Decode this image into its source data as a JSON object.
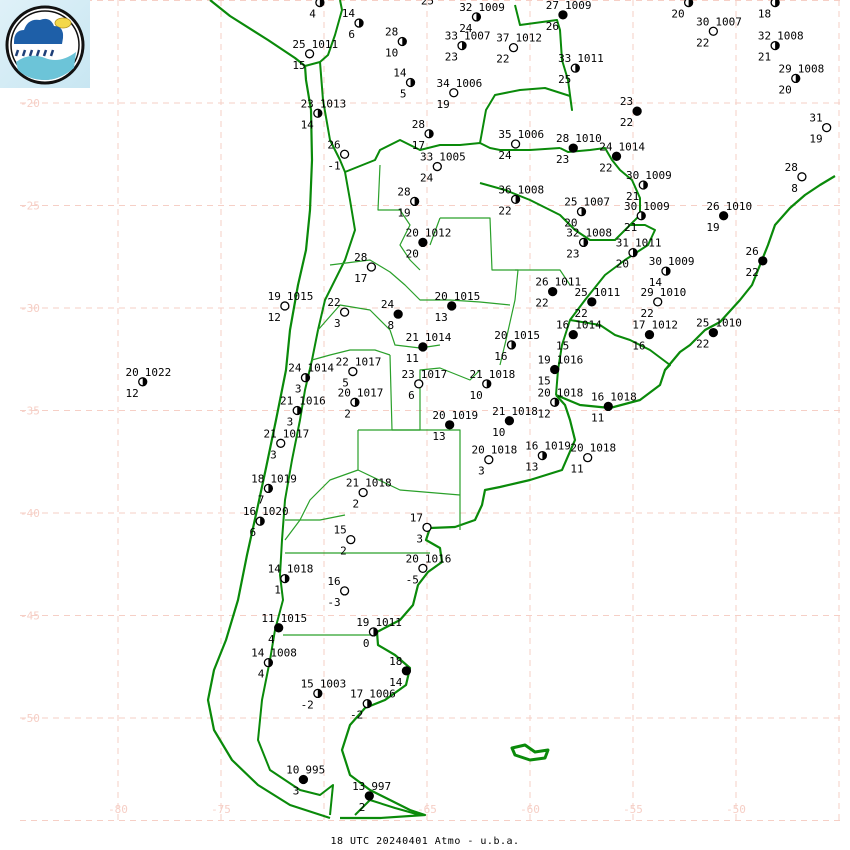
{
  "caption": "18 UTC  20240401 Atmo - u.b.a.",
  "logo": {
    "name": "Atmo UBA weather logo"
  },
  "colors": {
    "coast": "#0a8a0a",
    "borders": "#2aa02a",
    "grid": "#f6cfc6",
    "station": "#000000"
  },
  "grid": {
    "lat_labels": [
      "-20",
      "-25",
      "-30",
      "-35",
      "-40",
      "-45",
      "-50"
    ],
    "lat_values": [
      -20,
      -25,
      -30,
      -35,
      -40,
      -45,
      -50
    ],
    "lon_labels": [
      "-80",
      "-75",
      "-65",
      "-60",
      "-55",
      "-50"
    ],
    "lon_values": [
      -80,
      -75,
      -65,
      -60,
      -55,
      -50
    ]
  },
  "stations": [
    {
      "lon": -70.2,
      "lat": -15.1,
      "t": "17",
      "td": "4",
      "p": "",
      "cover": 0.5
    },
    {
      "lon": -68.3,
      "lat": -16.1,
      "t": "14",
      "td": "6",
      "p": "",
      "cover": 0.5
    },
    {
      "lon": -66.2,
      "lat": -17.0,
      "t": "28",
      "td": "10",
      "p": "",
      "cover": 0.5
    },
    {
      "lon": -65.8,
      "lat": -19.0,
      "t": "14",
      "td": "5",
      "p": "",
      "cover": 0.5
    },
    {
      "lon": -70.7,
      "lat": -17.6,
      "t": "25",
      "td": "15",
      "p": "1011",
      "cover": 0
    },
    {
      "lon": -70.3,
      "lat": -20.5,
      "t": "23",
      "td": "14",
      "p": "1013",
      "cover": 0.5
    },
    {
      "lon": -69.0,
      "lat": -22.5,
      "t": "26",
      "td": "-1",
      "p": "",
      "cover": 0
    },
    {
      "lon": -62.6,
      "lat": -15.8,
      "t": "32",
      "td": "24",
      "p": "1009",
      "cover": 0.5
    },
    {
      "lon": -63.3,
      "lat": -17.2,
      "t": "33",
      "td": "23",
      "p": "1007",
      "cover": 0.5
    },
    {
      "lon": -60.8,
      "lat": -17.3,
      "t": "37",
      "td": "22",
      "p": "1012",
      "cover": 0
    },
    {
      "lon": -58.4,
      "lat": -15.7,
      "t": "27",
      "td": "26",
      "p": "1009",
      "cover": 1
    },
    {
      "lon": -63.7,
      "lat": -19.5,
      "t": "34",
      "td": "19",
      "p": "1006",
      "cover": 0
    },
    {
      "lon": -57.8,
      "lat": -18.3,
      "t": "33",
      "td": "25",
      "p": "1011",
      "cover": 0.5
    },
    {
      "lon": -64.9,
      "lat": -21.5,
      "t": "28",
      "td": "17",
      "p": "",
      "cover": 0.5
    },
    {
      "lon": -64.5,
      "lat": -23.1,
      "t": "33",
      "td": "24",
      "p": "1005",
      "cover": 0
    },
    {
      "lon": -65.6,
      "lat": -24.8,
      "t": "28",
      "td": "19",
      "p": "",
      "cover": 0.5
    },
    {
      "lon": -60.7,
      "lat": -22.0,
      "t": "35",
      "td": "24",
      "p": "1006",
      "cover": 0
    },
    {
      "lon": -60.7,
      "lat": -24.7,
      "t": "36",
      "td": "22",
      "p": "1008",
      "cover": 0.5
    },
    {
      "lon": -57.9,
      "lat": -22.2,
      "t": "28",
      "td": "23",
      "p": "1010",
      "cover": 1
    },
    {
      "lon": -54.8,
      "lat": -20.4,
      "t": "23",
      "td": "22",
      "p": "",
      "cover": 1
    },
    {
      "lon": -55.8,
      "lat": -22.6,
      "t": "24",
      "td": "22",
      "p": "1014",
      "cover": 1
    },
    {
      "lon": -54.5,
      "lat": -24.0,
      "t": "30",
      "td": "21",
      "p": "1009",
      "cover": 0.5
    },
    {
      "lon": -57.5,
      "lat": -25.3,
      "t": "25",
      "td": "20",
      "p": "1007",
      "cover": 0.5
    },
    {
      "lon": -54.6,
      "lat": -25.5,
      "t": "30",
      "td": "21",
      "p": "1009",
      "cover": 0.5
    },
    {
      "lon": -50.6,
      "lat": -25.5,
      "t": "26",
      "td": "19",
      "p": "1010",
      "cover": 1
    },
    {
      "lon": -52.3,
      "lat": -15.1,
      "t": "35",
      "td": "20",
      "p": "",
      "cover": 0.5
    },
    {
      "lon": -48.1,
      "lat": -15.1,
      "t": "29",
      "td": "18",
      "p": "",
      "cover": 0.5
    },
    {
      "lon": -51.1,
      "lat": -16.5,
      "t": "30",
      "td": "22",
      "p": "1007",
      "cover": 0
    },
    {
      "lon": -48.1,
      "lat": -17.2,
      "t": "32",
      "td": "21",
      "p": "1008",
      "cover": 0.5
    },
    {
      "lon": -47.1,
      "lat": -18.8,
      "t": "29",
      "td": "20",
      "p": "1008",
      "cover": 0.5
    },
    {
      "lon": -45.6,
      "lat": -21.2,
      "t": "31",
      "td": "19",
      "p": "",
      "cover": 0
    },
    {
      "lon": -46.8,
      "lat": -23.6,
      "t": "28",
      "td": "8",
      "p": "",
      "cover": 0
    },
    {
      "lon": -57.4,
      "lat": -26.8,
      "t": "32",
      "td": "23",
      "p": "1008",
      "cover": 0.5
    },
    {
      "lon": -55.0,
      "lat": -27.3,
      "t": "31",
      "td": "20",
      "p": "1011",
      "cover": 0.5
    },
    {
      "lon": -53.4,
      "lat": -28.2,
      "t": "30",
      "td": "14",
      "p": "1009",
      "cover": 0.5
    },
    {
      "lon": -53.8,
      "lat": -29.7,
      "t": "29",
      "td": "22",
      "p": "1010",
      "cover": 0
    },
    {
      "lon": -48.7,
      "lat": -27.7,
      "t": "26",
      "td": "22",
      "p": "",
      "cover": 1
    },
    {
      "lon": -65.2,
      "lat": -26.8,
      "t": "20",
      "td": "20",
      "p": "1012",
      "cover": 1
    },
    {
      "lon": -67.7,
      "lat": -28.0,
      "t": "28",
      "td": "17",
      "p": "",
      "cover": 0
    },
    {
      "lon": -69.0,
      "lat": -30.2,
      "t": "22",
      "td": "3",
      "p": "",
      "cover": 0
    },
    {
      "lon": -66.4,
      "lat": -30.3,
      "t": "24",
      "td": "8",
      "p": "",
      "cover": 1
    },
    {
      "lon": -63.8,
      "lat": -29.9,
      "t": "20",
      "td": "13",
      "p": "1015",
      "cover": 1
    },
    {
      "lon": -71.9,
      "lat": -29.9,
      "t": "19",
      "td": "12",
      "p": "1015",
      "cover": 0
    },
    {
      "lon": -65.2,
      "lat": -31.9,
      "t": "21",
      "td": "11",
      "p": "1014",
      "cover": 1
    },
    {
      "lon": -58.9,
      "lat": -29.2,
      "t": "26",
      "td": "22",
      "p": "1011",
      "cover": 1
    },
    {
      "lon": -57.0,
      "lat": -29.7,
      "t": "25",
      "td": "22",
      "p": "1011",
      "cover": 1
    },
    {
      "lon": -57.9,
      "lat": -31.3,
      "t": "16",
      "td": "15",
      "p": "1014",
      "cover": 1
    },
    {
      "lon": -54.2,
      "lat": -31.3,
      "t": "17",
      "td": "16",
      "p": "1012",
      "cover": 1
    },
    {
      "lon": -51.1,
      "lat": -31.2,
      "t": "25",
      "td": "22",
      "p": "1010",
      "cover": 1
    },
    {
      "lon": -60.9,
      "lat": -31.8,
      "t": "20",
      "td": "16",
      "p": "1015",
      "cover": 0.5
    },
    {
      "lon": -58.8,
      "lat": -33.0,
      "t": "19",
      "td": "15",
      "p": "1016",
      "cover": 1
    },
    {
      "lon": -68.6,
      "lat": -33.1,
      "t": "22",
      "td": "5",
      "p": "1017",
      "cover": 0
    },
    {
      "lon": -70.9,
      "lat": -33.4,
      "t": "24",
      "td": "3",
      "p": "1014",
      "cover": 0.5
    },
    {
      "lon": -65.4,
      "lat": -33.7,
      "t": "23",
      "td": "6",
      "p": "1017",
      "cover": 0
    },
    {
      "lon": -62.1,
      "lat": -33.7,
      "t": "21",
      "td": "10",
      "p": "1018",
      "cover": 0.5
    },
    {
      "lon": -68.5,
      "lat": -34.6,
      "t": "20",
      "td": "2",
      "p": "1017",
      "cover": 0.5
    },
    {
      "lon": -71.3,
      "lat": -35.0,
      "t": "21",
      "td": "3",
      "p": "1016",
      "cover": 0.5
    },
    {
      "lon": -58.8,
      "lat": -34.6,
      "t": "20",
      "td": "12",
      "p": "1018",
      "cover": 0.5
    },
    {
      "lon": -56.2,
      "lat": -34.8,
      "t": "16",
      "td": "11",
      "p": "1018",
      "cover": 1
    },
    {
      "lon": -61.0,
      "lat": -35.5,
      "t": "21",
      "td": "10",
      "p": "1018",
      "cover": 1
    },
    {
      "lon": -63.9,
      "lat": -35.7,
      "t": "20",
      "td": "13",
      "p": "1019",
      "cover": 1
    },
    {
      "lon": -72.1,
      "lat": -36.6,
      "t": "21",
      "td": "3",
      "p": "1017",
      "cover": 0
    },
    {
      "lon": -62.0,
      "lat": -37.4,
      "t": "20",
      "td": "3",
      "p": "1018",
      "cover": 0
    },
    {
      "lon": -59.4,
      "lat": -37.2,
      "t": "16",
      "td": "13",
      "p": "1019",
      "cover": 0.5
    },
    {
      "lon": -57.2,
      "lat": -37.3,
      "t": "20",
      "td": "11",
      "p": "1018",
      "cover": 0
    },
    {
      "lon": -78.8,
      "lat": -33.6,
      "t": "20",
      "td": "12",
      "p": "1022",
      "cover": 0.5
    },
    {
      "lon": -72.7,
      "lat": -38.8,
      "t": "18",
      "td": "7",
      "p": "1019",
      "cover": 0.5
    },
    {
      "lon": -73.1,
      "lat": -40.4,
      "t": "16",
      "td": "6",
      "p": "1020",
      "cover": 0.5
    },
    {
      "lon": -68.1,
      "lat": -39.0,
      "t": "21",
      "td": "2",
      "p": "1018",
      "cover": 0
    },
    {
      "lon": -68.7,
      "lat": -41.3,
      "t": "15",
      "td": "2",
      "p": "",
      "cover": 0
    },
    {
      "lon": -65.0,
      "lat": -40.7,
      "t": "17",
      "td": "3",
      "p": "",
      "cover": 0
    },
    {
      "lon": -65.2,
      "lat": -42.7,
      "t": "20",
      "td": "-5",
      "p": "1016",
      "cover": 0
    },
    {
      "lon": -71.9,
      "lat": -43.2,
      "t": "14",
      "td": "1",
      "p": "1018",
      "cover": 0.5
    },
    {
      "lon": -69.0,
      "lat": -43.8,
      "t": "16",
      "td": "-3",
      "p": "",
      "cover": 0
    },
    {
      "lon": -72.2,
      "lat": -45.6,
      "t": "11",
      "td": "4",
      "p": "1015",
      "cover": 1
    },
    {
      "lon": -67.6,
      "lat": -45.8,
      "t": "19",
      "td": "0",
      "p": "1011",
      "cover": 0.5
    },
    {
      "lon": -72.7,
      "lat": -47.3,
      "t": "14",
      "td": "4",
      "p": "1008",
      "cover": 0.5
    },
    {
      "lon": -66.0,
      "lat": -47.7,
      "t": "18",
      "td": "14",
      "p": "",
      "cover": 1
    },
    {
      "lon": -70.3,
      "lat": -48.8,
      "t": "15",
      "td": "-2",
      "p": "1003",
      "cover": 0.5
    },
    {
      "lon": -67.9,
      "lat": -49.3,
      "t": "17",
      "td": "-2",
      "p": "1006",
      "cover": 0.5
    },
    {
      "lon": -71.0,
      "lat": -53.0,
      "t": "10",
      "td": "3",
      "p": "995",
      "cover": 1
    },
    {
      "lon": -67.8,
      "lat": -53.8,
      "t": "13",
      "td": "2",
      "p": "997",
      "cover": 1
    }
  ],
  "map_text": [
    {
      "lon": -65.3,
      "lat": -15.0,
      "text": "25"
    }
  ]
}
